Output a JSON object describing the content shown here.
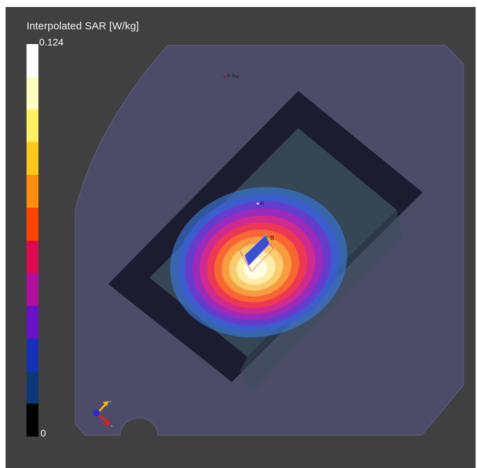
{
  "legend": {
    "title": "Interpolated SAR [W/kg]",
    "max_label": "0.124",
    "min_label": "0",
    "bands_top_to_bottom": [
      "#ffffff",
      "#ffffc0",
      "#fff060",
      "#ffc81a",
      "#ff8c0a",
      "#ff4200",
      "#e00a50",
      "#b0109c",
      "#6a12c8",
      "#1630b8",
      "#0c3878",
      "#000000"
    ]
  },
  "scene": {
    "labels": {
      "phantom_point": "P: Flat",
      "point_r": "R",
      "point_b": "B"
    },
    "contour_colors_outer_to_inner": [
      "#3a78d8",
      "#3d5cd0",
      "#6a3acc",
      "#a02aba",
      "#d42a8a",
      "#f03a50",
      "#f86a30",
      "#f8a040",
      "#f8d070",
      "#fff0b0",
      "#ffffe8"
    ],
    "colors": {
      "background": "#404040",
      "phantom": "#4c4c68",
      "phantom_edge": "#5e5e80",
      "frame": "#1c1c30",
      "inner": "#3a4e5c"
    }
  },
  "axes_icon": {
    "x_color": "#e02020",
    "y_color": "#f0b020",
    "z_color": "#2a2ad0"
  }
}
